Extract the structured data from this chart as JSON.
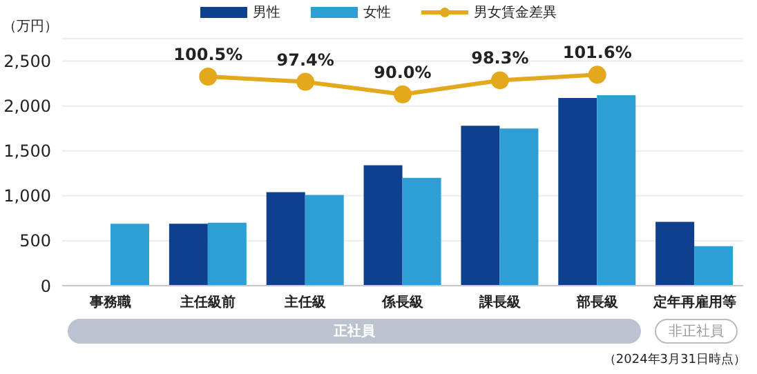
{
  "chart_data": {
    "type": "bar",
    "ylabel": "（万円）",
    "categories": [
      "事務職",
      "主任級前",
      "主任級",
      "係長級",
      "課長級",
      "部長級",
      "定年再雇用等"
    ],
    "series": [
      {
        "name": "男性",
        "color": "#0f3f8f",
        "values": [
          null,
          690,
          1040,
          1340,
          1780,
          2090,
          710
        ]
      },
      {
        "name": "女性",
        "color": "#2e9fd4",
        "values": [
          690,
          700,
          1010,
          1200,
          1750,
          2120,
          440
        ]
      },
      {
        "name": "男女賃金差異",
        "type": "line",
        "axis": "y2",
        "color": "#e3a81b",
        "values": [
          null,
          100.5,
          97.4,
          90.0,
          98.3,
          101.6,
          null
        ],
        "value_labels": [
          null,
          "100.5%",
          "97.4%",
          "90.0%",
          "98.3%",
          "101.6%",
          null
        ]
      }
    ],
    "ylim": [
      0,
      2750
    ],
    "yticks": [
      0,
      500,
      {
        "value": 1000,
        "label": "1,000"
      },
      {
        "value": 1500,
        "label": "1,500"
      },
      {
        "value": 2000,
        "label": "2,000"
      },
      {
        "value": 2500,
        "label": "2,500"
      }
    ],
    "grid": "y",
    "legend": "top",
    "marker": "circle",
    "tick_labels": "xy",
    "annotations": [
      "正社員",
      "非正社員",
      "（2024年3月31日時点）"
    ]
  }
}
